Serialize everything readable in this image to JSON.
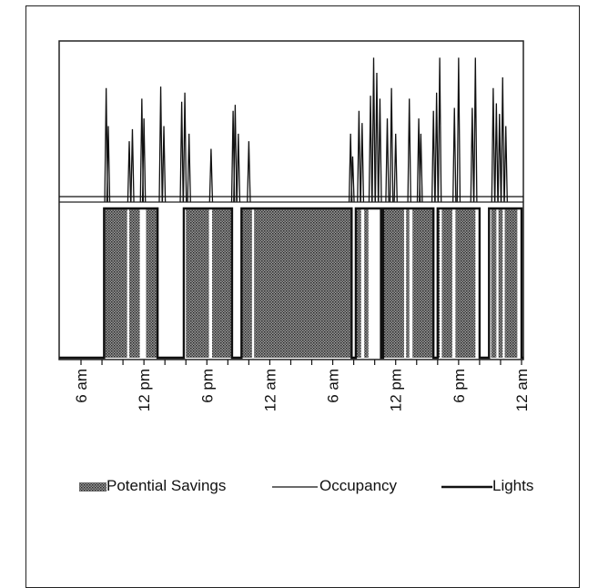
{
  "chart_data": {
    "type": "line",
    "title": "",
    "xlabel": "",
    "ylabel": "",
    "x_unit": "hours from 6 am",
    "xlim": [
      0,
      42
    ],
    "xticks": [
      {
        "x": 0,
        "label": "6 am"
      },
      {
        "x": 6,
        "label": "12 pm"
      },
      {
        "x": 12,
        "label": "6 pm"
      },
      {
        "x": 18,
        "label": "12 am"
      },
      {
        "x": 24,
        "label": "6 am"
      },
      {
        "x": 30,
        "label": "12 pm"
      },
      {
        "x": 36,
        "label": "6 pm"
      },
      {
        "x": 42,
        "label": "12 am"
      }
    ],
    "panels": {
      "top": "Occupancy",
      "bottom": "Lights and Potential Savings"
    },
    "series": [
      {
        "name": "Occupancy",
        "style": "thin line",
        "spikes": [
          [
            2.4,
            0.75
          ],
          [
            2.6,
            0.5
          ],
          [
            4.6,
            0.4
          ],
          [
            4.9,
            0.48
          ],
          [
            5.8,
            0.68
          ],
          [
            6.0,
            0.55
          ],
          [
            7.6,
            0.76
          ],
          [
            7.9,
            0.5
          ],
          [
            9.6,
            0.66
          ],
          [
            9.9,
            0.72
          ],
          [
            10.3,
            0.45
          ],
          [
            12.4,
            0.35
          ],
          [
            14.5,
            0.6
          ],
          [
            14.7,
            0.64
          ],
          [
            15.0,
            0.45
          ],
          [
            16.0,
            0.4
          ],
          [
            25.7,
            0.45
          ],
          [
            25.9,
            0.3
          ],
          [
            26.5,
            0.6
          ],
          [
            26.8,
            0.52
          ],
          [
            27.6,
            0.7
          ],
          [
            27.9,
            0.95
          ],
          [
            28.2,
            0.85
          ],
          [
            28.5,
            0.68
          ],
          [
            29.2,
            0.55
          ],
          [
            29.6,
            0.75
          ],
          [
            30.0,
            0.45
          ],
          [
            31.3,
            0.68
          ],
          [
            32.2,
            0.55
          ],
          [
            32.4,
            0.45
          ],
          [
            33.6,
            0.6
          ],
          [
            33.9,
            0.72
          ],
          [
            34.2,
            0.95
          ],
          [
            35.6,
            0.62
          ],
          [
            36.0,
            0.95
          ],
          [
            37.3,
            0.62
          ],
          [
            37.6,
            0.95
          ],
          [
            39.3,
            0.75
          ],
          [
            39.6,
            0.65
          ],
          [
            39.9,
            0.58
          ],
          [
            40.2,
            0.82
          ],
          [
            40.5,
            0.5
          ]
        ]
      },
      {
        "name": "Lights",
        "style": "thick line",
        "on_intervals": [
          [
            2.2,
            7.3
          ],
          [
            9.8,
            14.4
          ],
          [
            15.3,
            25.8
          ],
          [
            26.2,
            28.6
          ],
          [
            28.8,
            33.6
          ],
          [
            34.0,
            38.0
          ],
          [
            38.9,
            42.0
          ]
        ]
      },
      {
        "name": "Potential Savings",
        "style": "dotted fill",
        "intervals": [
          [
            2.2,
            4.4
          ],
          [
            4.6,
            5.6
          ],
          [
            6.2,
            7.3
          ],
          [
            10.0,
            12.2
          ],
          [
            12.5,
            14.4
          ],
          [
            15.3,
            16.3
          ],
          [
            16.5,
            25.8
          ],
          [
            26.2,
            26.7
          ],
          [
            27.0,
            27.4
          ],
          [
            28.7,
            30.8
          ],
          [
            31.0,
            31.3
          ],
          [
            31.6,
            33.5
          ],
          [
            34.0,
            34.2
          ],
          [
            34.4,
            35.4
          ],
          [
            35.7,
            37.6
          ],
          [
            39.1,
            39.6
          ],
          [
            39.8,
            40.2
          ],
          [
            40.4,
            41.6
          ]
        ]
      }
    ],
    "legend": {
      "placement": "bottom",
      "items": [
        {
          "label": "Potential Savings",
          "marker": "dotted"
        },
        {
          "label": "Occupancy",
          "marker": "thin-line"
        },
        {
          "label": "Lights",
          "marker": "thick-line"
        }
      ]
    },
    "grid": false,
    "colors": {
      "ink": "#111111",
      "fill": "#555555",
      "background": "#ffffff"
    }
  }
}
